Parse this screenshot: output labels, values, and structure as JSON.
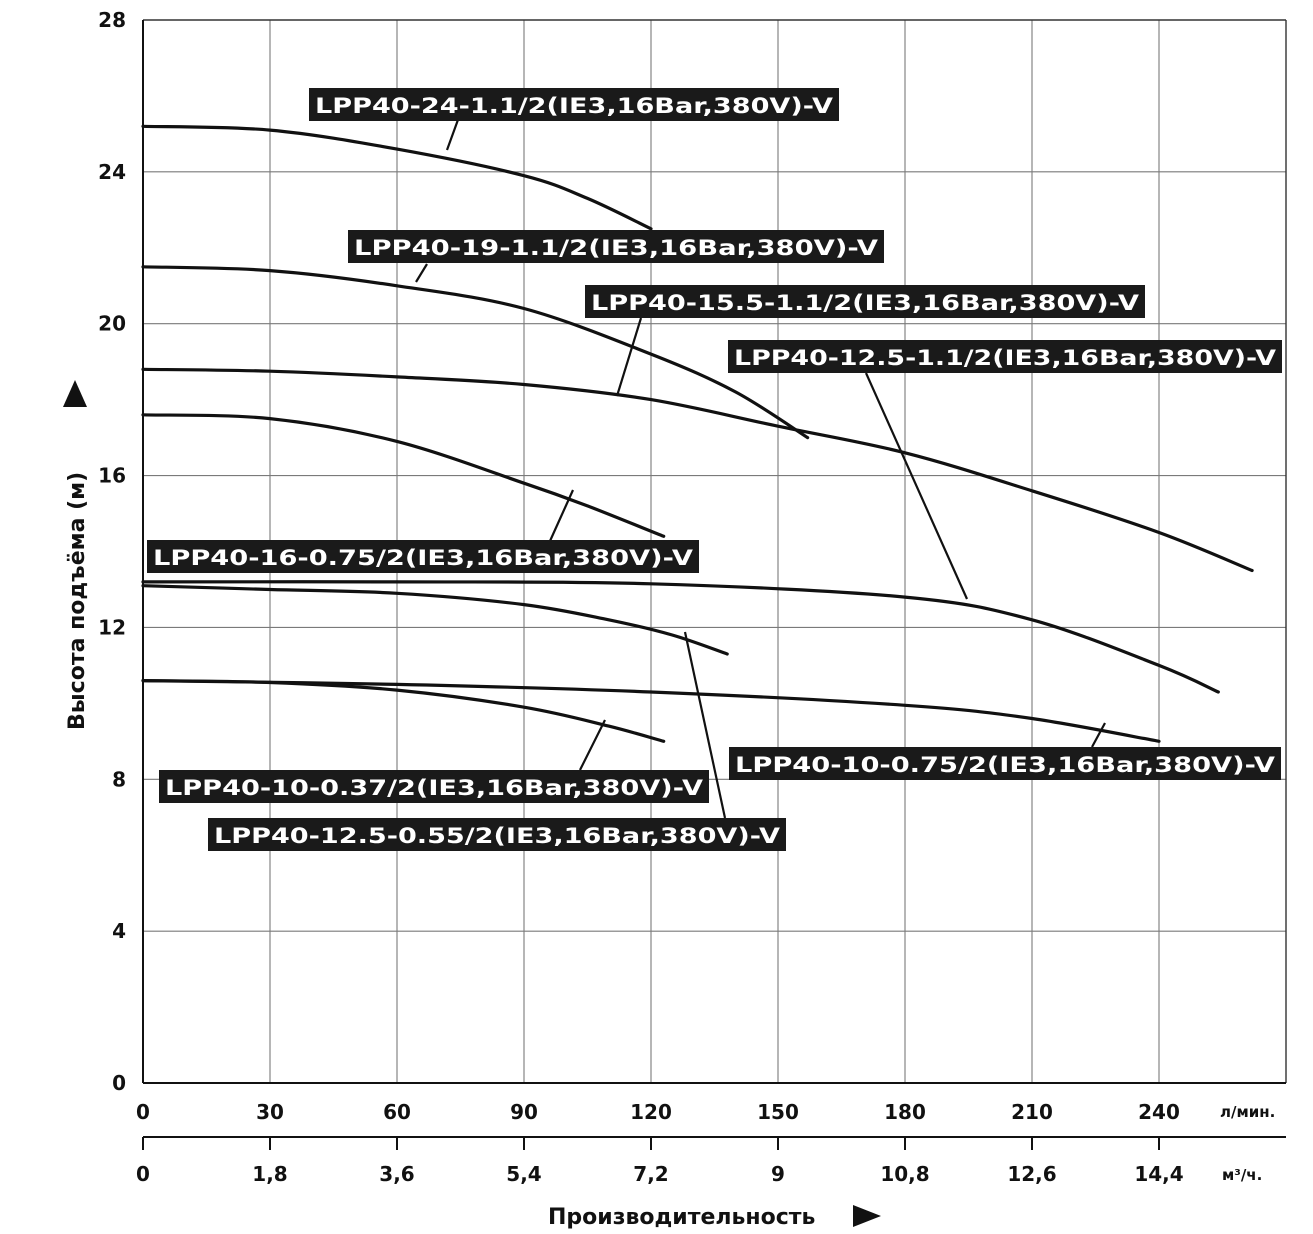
{
  "chart_data": {
    "type": "line",
    "ylabel": "Высота подъёма (м)",
    "xlabel": "Производительность",
    "x_primary_unit": "л/мин.",
    "x_secondary_unit": "м³/ч.",
    "xlim": [
      0,
      270
    ],
    "ylim": [
      0,
      28
    ],
    "y_ticks": [
      "0",
      "4",
      "8",
      "12",
      "16",
      "20",
      "24",
      "28"
    ],
    "x_ticks_primary": [
      "0",
      "30",
      "60",
      "90",
      "120",
      "150",
      "180",
      "210",
      "240"
    ],
    "x_ticks_secondary": [
      "0",
      "1,8",
      "3,6",
      "5,4",
      "7,2",
      "9",
      "10,8",
      "12,6",
      "14,4"
    ],
    "grid": true,
    "series": [
      {
        "name": "LPP40-24-1.1/2(IE3,16Bar,380V)-V",
        "x": [
          0,
          30,
          60,
          90,
          105,
          120
        ],
        "y": [
          25.2,
          25.1,
          24.6,
          23.9,
          23.3,
          22.5
        ]
      },
      {
        "name": "LPP40-19-1.1/2(IE3,16Bar,380V)-V",
        "x": [
          0,
          30,
          60,
          90,
          120,
          140,
          157
        ],
        "y": [
          21.5,
          21.4,
          21.0,
          20.4,
          19.2,
          18.2,
          17.0
        ]
      },
      {
        "name": "LPP40-15.5-1.1/2(IE3,16Bar,380V)-V",
        "x": [
          0,
          30,
          60,
          90,
          120,
          150,
          180,
          210,
          240,
          262
        ],
        "y": [
          18.8,
          18.75,
          18.6,
          18.4,
          18.0,
          17.3,
          16.6,
          15.6,
          14.5,
          13.5
        ]
      },
      {
        "name": "LPP40-12.5-1.1/2(IE3,16Bar,380V)-V",
        "x": [
          0,
          60,
          120,
          180,
          210,
          240,
          254
        ],
        "y": [
          13.2,
          13.2,
          13.15,
          12.8,
          12.2,
          11.0,
          10.3
        ]
      },
      {
        "name": "LPP40-16-0.75/2(IE3,16Bar,380V)-V",
        "x": [
          0,
          30,
          60,
          90,
          105,
          123
        ],
        "y": [
          17.6,
          17.5,
          16.9,
          15.8,
          15.2,
          14.4
        ]
      },
      {
        "name": "LPP40-12.5-0.55/2(IE3,16Bar,380V)-V",
        "x": [
          0,
          30,
          60,
          90,
          110,
          125,
          138
        ],
        "y": [
          13.1,
          13.0,
          12.9,
          12.6,
          12.2,
          11.8,
          11.3
        ]
      },
      {
        "name": "LPP40-10-0.75/2(IE3,16Bar,380V)-V",
        "x": [
          0,
          60,
          120,
          180,
          210,
          240
        ],
        "y": [
          10.6,
          10.5,
          10.3,
          9.95,
          9.6,
          9.0
        ]
      },
      {
        "name": "LPP40-10-0.37/2(IE3,16Bar,380V)-V",
        "x": [
          0,
          30,
          60,
          90,
          110,
          123
        ],
        "y": [
          10.6,
          10.55,
          10.35,
          9.9,
          9.4,
          9.0
        ]
      }
    ]
  },
  "icons": {
    "y_arrow": "triangle-up-icon",
    "x_arrow": "triangle-right-icon"
  }
}
